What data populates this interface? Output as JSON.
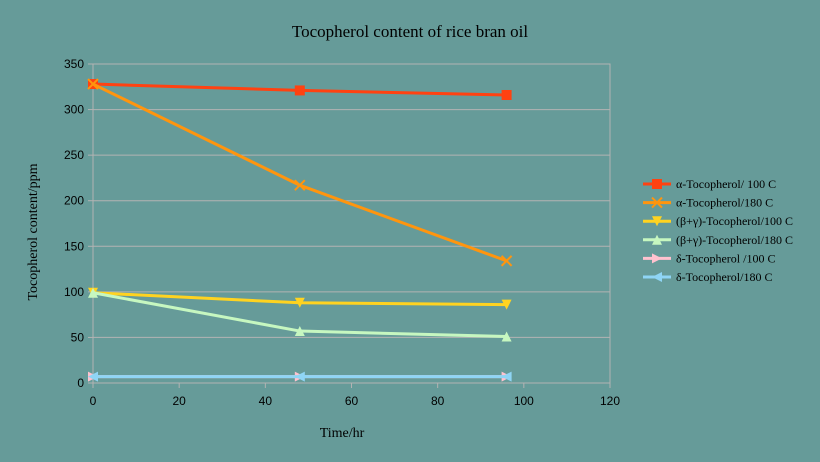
{
  "chart_data": {
    "type": "line",
    "title": "Tocopherol content of rice bran oil",
    "xlabel": "Time/hr",
    "ylabel": "Tocopherol content/ppm",
    "xlim": [
      0,
      120
    ],
    "ylim": [
      0,
      350
    ],
    "xticks": [
      0,
      20,
      40,
      60,
      80,
      100,
      120
    ],
    "yticks": [
      0,
      50,
      100,
      150,
      200,
      250,
      300,
      350
    ],
    "grid": "horizontal",
    "legend_position": "right",
    "series": [
      {
        "name": "α-Tocopherol/ 100 C",
        "color": "#ff4211",
        "marker": "square",
        "x": [
          0,
          48,
          96
        ],
        "y": [
          328,
          321,
          316
        ]
      },
      {
        "name": "α-Tocopherol/180 C",
        "color": "#ff950e",
        "marker": "x",
        "x": [
          0,
          48,
          96
        ],
        "y": [
          328,
          217,
          134
        ]
      },
      {
        "name": "(β+γ)-Tocopherol/100 C",
        "color": "#ffd320",
        "marker": "triangle-down",
        "x": [
          0,
          48,
          96
        ],
        "y": [
          99,
          88,
          86
        ]
      },
      {
        "name": "(β+γ)-Tocopherol/180 C",
        "color": "#c6f7c0",
        "marker": "triangle-up",
        "x": [
          0,
          48,
          96
        ],
        "y": [
          99,
          57,
          51
        ]
      },
      {
        "name": "δ-Tocopherol /100 C",
        "color": "#ffc2cf",
        "marker": "triangle-right",
        "x": [
          0,
          48,
          96
        ],
        "y": [
          7,
          7,
          7
        ]
      },
      {
        "name": "δ-Tocopherol/180 C",
        "color": "#8fd5f5",
        "marker": "triangle-left",
        "x": [
          0,
          48,
          96
        ],
        "y": [
          7,
          7,
          7
        ]
      }
    ]
  }
}
